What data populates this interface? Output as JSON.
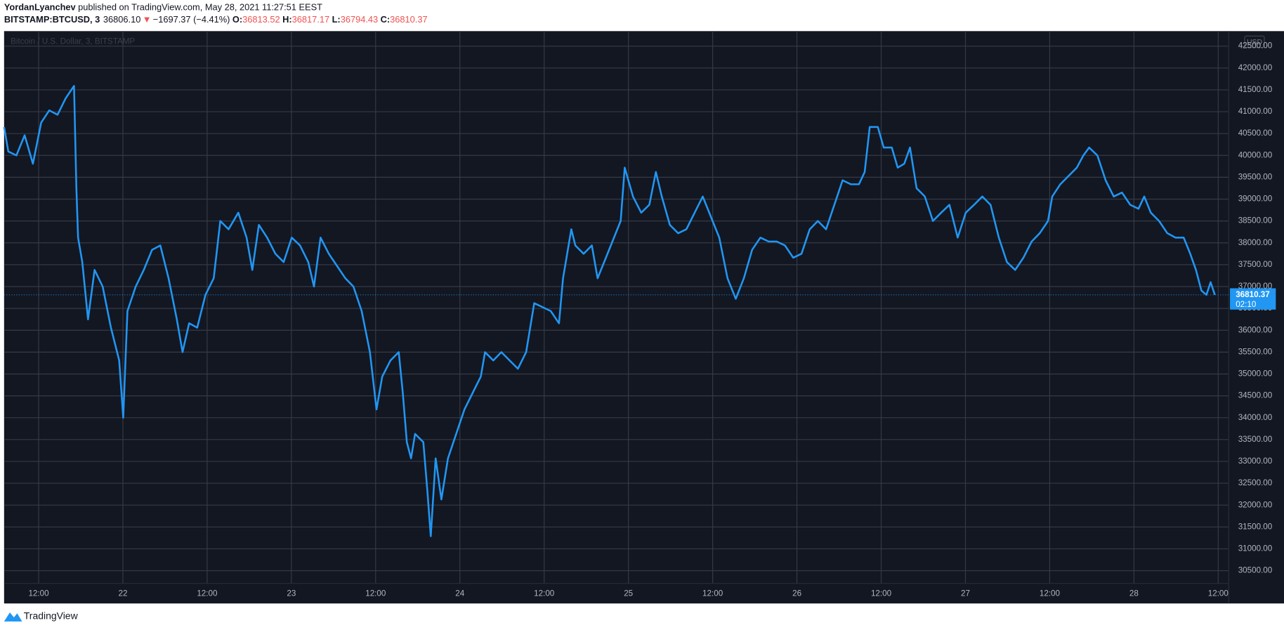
{
  "header": {
    "author": "YordanLyanchev",
    "published": "published on TradingView.com, May 28, 2021 11:27:51 EEST",
    "symbol": "BITSTAMP:BTCUSD, 3",
    "last": "36806.10",
    "arrow": "▼",
    "change": "−1697.37 (−4.41%)",
    "open_label": "O:",
    "open": "36813.52",
    "high_label": "H:",
    "high": "36817.17",
    "low_label": "L:",
    "low": "36794.43",
    "close_label": "C:",
    "close": "36810.37"
  },
  "chart_data": {
    "type": "line",
    "currency": "USD",
    "countdown": "02:10",
    "x": [
      21.295,
      21.32,
      21.368,
      21.417,
      21.466,
      21.515,
      21.563,
      21.612,
      21.661,
      21.71,
      21.724,
      21.734,
      21.759,
      21.793,
      21.832,
      21.88,
      21.929,
      21.978,
      22.002,
      22.027,
      22.076,
      22.124,
      22.173,
      22.222,
      22.271,
      22.32,
      22.354,
      22.393,
      22.441,
      22.49,
      22.539,
      22.578,
      22.627,
      22.685,
      22.734,
      22.768,
      22.807,
      22.856,
      22.905,
      22.954,
      23.002,
      23.051,
      23.1,
      23.134,
      23.173,
      23.222,
      23.271,
      23.32,
      23.368,
      23.417,
      23.466,
      23.505,
      23.539,
      23.588,
      23.637,
      23.661,
      23.685,
      23.71,
      23.734,
      23.783,
      23.807,
      23.827,
      23.856,
      23.89,
      23.929,
      23.978,
      24.027,
      24.076,
      24.124,
      24.149,
      24.198,
      24.246,
      24.295,
      24.344,
      24.393,
      24.441,
      24.49,
      24.539,
      24.588,
      24.612,
      24.661,
      24.685,
      24.734,
      24.783,
      24.817,
      24.856,
      24.905,
      24.954,
      24.978,
      25.027,
      25.076,
      25.124,
      25.163,
      25.198,
      25.246,
      25.295,
      25.344,
      25.393,
      25.441,
      25.49,
      25.539,
      25.588,
      25.637,
      25.685,
      25.734,
      25.783,
      25.832,
      25.88,
      25.929,
      25.978,
      26.027,
      26.076,
      26.124,
      26.173,
      26.222,
      26.271,
      26.32,
      26.368,
      26.402,
      26.432,
      26.48,
      26.515,
      26.563,
      26.598,
      26.637,
      26.671,
      26.71,
      26.759,
      26.807,
      26.856,
      26.905,
      26.954,
      27.002,
      27.051,
      27.1,
      27.149,
      27.198,
      27.246,
      27.295,
      27.344,
      27.393,
      27.441,
      27.49,
      27.515,
      27.563,
      27.612,
      27.661,
      27.7,
      27.734,
      27.783,
      27.832,
      27.88,
      27.929,
      27.978,
      28.027,
      28.061,
      28.1,
      28.149,
      28.198,
      28.246,
      28.295,
      28.334,
      28.368,
      28.4,
      28.43,
      28.455,
      28.48
    ],
    "series": [
      {
        "name": "Bitcoin / U.S. Dollar, 3, BITSTAMP",
        "color": "#2196f3",
        "values": [
          40650,
          40090,
          40000,
          40460,
          39810,
          40750,
          41030,
          40930,
          41310,
          41590,
          39250,
          38120,
          37560,
          36250,
          37380,
          37000,
          36060,
          35310,
          34000,
          36440,
          37000,
          37380,
          37840,
          37940,
          37190,
          36250,
          35500,
          36160,
          36060,
          36810,
          37190,
          38500,
          38310,
          38690,
          38120,
          37380,
          38410,
          38120,
          37750,
          37560,
          38120,
          37940,
          37560,
          37000,
          38120,
          37750,
          37470,
          37190,
          37000,
          36440,
          35500,
          34190,
          34940,
          35310,
          35500,
          34570,
          33440,
          33070,
          33630,
          33440,
          32320,
          31290,
          33070,
          32130,
          33070,
          33630,
          34190,
          34570,
          34940,
          35500,
          35310,
          35500,
          35310,
          35120,
          35500,
          36620,
          36530,
          36440,
          36160,
          37190,
          38310,
          37940,
          37750,
          37940,
          37190,
          37560,
          38030,
          38500,
          39720,
          39060,
          38690,
          38870,
          39620,
          39060,
          38410,
          38220,
          38310,
          38690,
          39060,
          38590,
          38120,
          37190,
          36720,
          37190,
          37840,
          38120,
          38030,
          38030,
          37940,
          37660,
          37750,
          38310,
          38500,
          38310,
          38870,
          39430,
          39340,
          39340,
          39620,
          40650,
          40650,
          40180,
          40180,
          39720,
          39810,
          40180,
          39250,
          39060,
          38500,
          38690,
          38870,
          38120,
          38690,
          38870,
          39060,
          38870,
          38120,
          37560,
          37380,
          37660,
          38030,
          38220,
          38500,
          39060,
          39340,
          39530,
          39720,
          40000,
          40180,
          40000,
          39430,
          39060,
          39150,
          38870,
          38780,
          39060,
          38690,
          38500,
          38220,
          38120,
          38120,
          37750,
          37380,
          36910,
          36810,
          37100,
          36810.37
        ]
      }
    ],
    "xlim": [
      21.295,
      28.56
    ],
    "xticks": [
      {
        "value": 21.5,
        "label": "12:00"
      },
      22,
      {
        "value": 22.5,
        "label": "12:00"
      },
      23,
      {
        "value": 23.5,
        "label": "12:00"
      },
      24,
      {
        "value": 24.5,
        "label": "12:00"
      },
      25,
      {
        "value": 25.5,
        "label": "12:00"
      },
      26,
      {
        "value": 26.5,
        "label": "12:00"
      },
      27,
      {
        "value": 27.5,
        "label": "12:00"
      },
      28,
      {
        "value": 28.5,
        "label": "12:00"
      }
    ],
    "ylim": [
      30219,
      42843
    ],
    "yticks": [
      {
        "value": 30500,
        "label": "30500.00"
      },
      {
        "value": 31000,
        "label": "31000.00"
      },
      {
        "value": 31500,
        "label": "31500.00"
      },
      {
        "value": 32000,
        "label": "32000.00"
      },
      {
        "value": 32500,
        "label": "32500.00"
      },
      {
        "value": 33000,
        "label": "33000.00"
      },
      {
        "value": 33500,
        "label": "33500.00"
      },
      {
        "value": 34000,
        "label": "34000.00"
      },
      {
        "value": 34500,
        "label": "34500.00"
      },
      {
        "value": 35000,
        "label": "35000.00"
      },
      {
        "value": 35500,
        "label": "35500.00"
      },
      {
        "value": 36000,
        "label": "36000.00"
      },
      {
        "value": 36500,
        "label": "36500.00"
      },
      {
        "value": 37000,
        "label": "37000.00"
      },
      {
        "value": 37500,
        "label": "37500.00"
      },
      {
        "value": 38000,
        "label": "38000.00"
      },
      {
        "value": 38500,
        "label": "38500.00"
      },
      {
        "value": 39000,
        "label": "39000.00"
      },
      {
        "value": 39500,
        "label": "39500.00"
      },
      {
        "value": 40000,
        "label": "40000.00"
      },
      {
        "value": 40500,
        "label": "40500.00"
      },
      {
        "value": 41000,
        "label": "41000.00"
      },
      {
        "value": 41500,
        "label": "41500.00"
      },
      {
        "value": 42000,
        "label": "42000.00"
      },
      {
        "value": 42500,
        "label": "42500.00"
      }
    ],
    "grid": true
  },
  "footer": {
    "brand": "TradingView"
  }
}
